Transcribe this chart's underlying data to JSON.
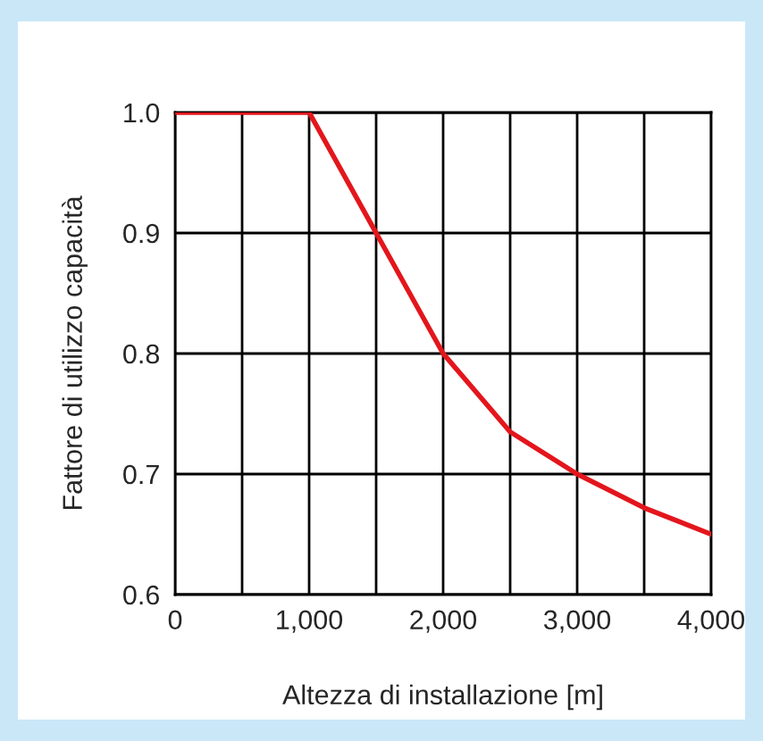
{
  "chart_data": {
    "type": "line",
    "xlabel": "Altezza di installazione [m]",
    "ylabel": "Fattore di utilizzo capacità",
    "x": [
      0,
      1000,
      1500,
      2000,
      2500,
      3000,
      3500,
      4000
    ],
    "series": [
      {
        "color": "#e3161c",
        "values": [
          1.0,
          1.0,
          0.9,
          0.8,
          0.735,
          0.7,
          0.672,
          0.65
        ]
      }
    ],
    "xlim": [
      0,
      4000
    ],
    "ylim": [
      0.6,
      1.0
    ],
    "xticks": [
      0,
      {
        "value": 500,
        "label": null
      },
      {
        "value": 1000,
        "label": "1,000"
      },
      {
        "value": 1500,
        "label": null
      },
      {
        "value": 2000,
        "label": "2,000"
      },
      {
        "value": 2500,
        "label": null
      },
      {
        "value": 3000,
        "label": "3,000"
      },
      {
        "value": 3500,
        "label": null
      },
      {
        "value": 4000,
        "label": "4,000"
      }
    ],
    "yticks": [
      {
        "value": 0.6,
        "label": "0.6"
      },
      {
        "value": 0.7,
        "label": "0.7"
      },
      {
        "value": 0.8,
        "label": "0.8"
      },
      {
        "value": 0.9,
        "label": "0.9"
      },
      {
        "value": 1.0,
        "label": "1.0"
      }
    ],
    "grid": true,
    "marker": "none",
    "line_style": "solid",
    "legend": false
  }
}
